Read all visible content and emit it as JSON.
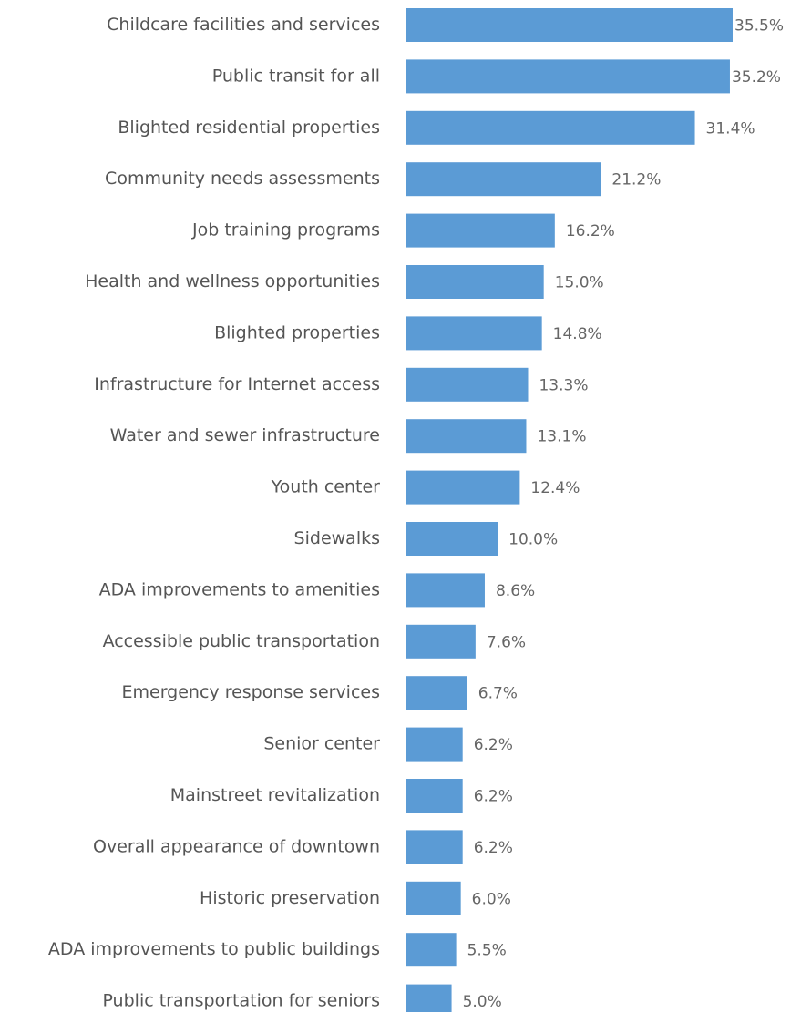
{
  "chart_data": {
    "type": "bar",
    "orientation": "horizontal",
    "categories": [
      "Childcare facilities and services",
      "Public transit for all",
      "Blighted residential properties",
      "Community needs assessments",
      "Job training programs",
      "Health and wellness opportunities",
      "Blighted properties",
      "Infrastructure for Internet access",
      "Water and sewer infrastructure",
      "Youth center",
      "Sidewalks",
      "ADA improvements to amenities",
      "Accessible public transportation",
      "Emergency response services",
      "Senior center",
      "Mainstreet revitalization",
      "Overall appearance of downtown",
      "Historic preservation",
      "ADA improvements to public buildings",
      "Public transportation for seniors"
    ],
    "values": [
      35.5,
      35.2,
      31.4,
      21.2,
      16.2,
      15.0,
      14.8,
      13.3,
      13.1,
      12.4,
      10.0,
      8.6,
      7.6,
      6.7,
      6.2,
      6.2,
      6.2,
      6.0,
      5.5,
      5.0
    ],
    "value_labels": [
      "35.5%",
      "35.2%",
      "31.4%",
      "21.2%",
      "16.2%",
      "15.0%",
      "14.8%",
      "13.3%",
      "13.1%",
      "12.4%",
      "10.0%",
      "8.6%",
      "7.6%",
      "6.7%",
      "6.2%",
      "6.2%",
      "6.2%",
      "6.0%",
      "5.5%",
      "5.0%"
    ],
    "title": "",
    "xlabel": "",
    "ylabel": "",
    "xlim": [
      0,
      35.5
    ],
    "grid": false,
    "legend": "none",
    "bar_color": "#5b9bd5"
  }
}
